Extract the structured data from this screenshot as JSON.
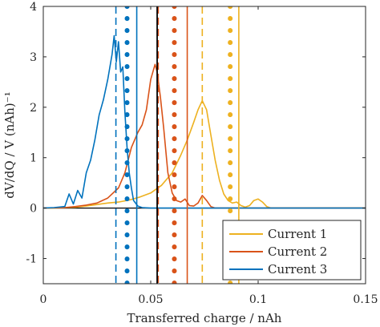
{
  "chart_data": {
    "type": "line",
    "title": "",
    "xlabel": "Transferred charge / nAh",
    "ylabel": "dV/dQ / V (nAh)⁻¹",
    "xlim": [
      0,
      0.15
    ],
    "ylim": [
      -1.5,
      4
    ],
    "xticks": [
      0,
      0.05,
      0.1,
      0.15
    ],
    "xtick_labels": [
      "0",
      "0.05",
      "0.1",
      "0.15"
    ],
    "yticks": [
      -1,
      0,
      1,
      2,
      3,
      4
    ],
    "ytick_labels": [
      "-1",
      "0",
      "1",
      "2",
      "3",
      "4"
    ],
    "grid": false,
    "legend_position": "bottom-right",
    "zero_line": {
      "y": 0,
      "color": "#000000"
    },
    "black_vline": {
      "x": 0.053,
      "color": "#000000"
    },
    "series": [
      {
        "name": "Current 1",
        "color": "#EDB120",
        "x": [
          0,
          0.005,
          0.01,
          0.015,
          0.02,
          0.025,
          0.03,
          0.035,
          0.04,
          0.045,
          0.05,
          0.055,
          0.06,
          0.064,
          0.067,
          0.07,
          0.072,
          0.074,
          0.076,
          0.078,
          0.08,
          0.082,
          0.084,
          0.086,
          0.088,
          0.09,
          0.092,
          0.094,
          0.096,
          0.098,
          0.1,
          0.102,
          0.104,
          0.106,
          0.11,
          0.15
        ],
        "y": [
          0,
          0,
          0.01,
          0.02,
          0.04,
          0.07,
          0.1,
          0.12,
          0.16,
          0.22,
          0.3,
          0.45,
          0.7,
          1.05,
          1.35,
          1.7,
          1.95,
          2.13,
          1.95,
          1.45,
          0.95,
          0.55,
          0.28,
          0.15,
          0.1,
          0.12,
          0.05,
          0.02,
          0.05,
          0.15,
          0.18,
          0.12,
          0.03,
          0,
          0,
          0
        ],
        "lines": {
          "dashed_x": 0.074,
          "dotted_x": 0.087,
          "solid_x": 0.091
        }
      },
      {
        "name": "Current 2",
        "color": "#D95319",
        "x": [
          0,
          0.01,
          0.015,
          0.02,
          0.025,
          0.03,
          0.035,
          0.038,
          0.041,
          0.044,
          0.046,
          0.048,
          0.05,
          0.052,
          0.053,
          0.0545,
          0.056,
          0.058,
          0.06,
          0.062,
          0.064,
          0.066,
          0.068,
          0.07,
          0.072,
          0.074,
          0.076,
          0.078,
          0.08,
          0.085,
          0.15
        ],
        "y": [
          0,
          0.01,
          0.03,
          0.06,
          0.1,
          0.2,
          0.4,
          0.7,
          1.2,
          1.5,
          1.65,
          1.95,
          2.55,
          2.85,
          2.7,
          2.2,
          1.6,
          0.7,
          0.3,
          0.15,
          0.12,
          0.18,
          0.05,
          0.04,
          0.1,
          0.25,
          0.15,
          0.03,
          0,
          0,
          0
        ],
        "lines": {
          "dashed_x": 0.0535,
          "dotted_x": 0.061,
          "solid_x": 0.067
        }
      },
      {
        "name": "Current 3",
        "color": "#0072BD",
        "x": [
          0,
          0.005,
          0.01,
          0.012,
          0.014,
          0.016,
          0.018,
          0.02,
          0.022,
          0.024,
          0.026,
          0.028,
          0.03,
          0.032,
          0.033,
          0.034,
          0.035,
          0.036,
          0.037,
          0.038,
          0.039,
          0.04,
          0.041,
          0.042,
          0.044,
          0.046,
          0.05,
          0.06,
          0.15
        ],
        "y": [
          0,
          0.01,
          0.03,
          0.28,
          0.08,
          0.35,
          0.2,
          0.7,
          0.95,
          1.35,
          1.85,
          2.15,
          2.55,
          3.05,
          3.42,
          2.9,
          3.3,
          2.7,
          2.8,
          1.9,
          1.2,
          0.7,
          0.4,
          0.15,
          0.04,
          0.01,
          0,
          0,
          0
        ],
        "lines": {
          "dashed_x": 0.0338,
          "dotted_x": 0.039,
          "solid_x": 0.0435
        }
      }
    ]
  }
}
